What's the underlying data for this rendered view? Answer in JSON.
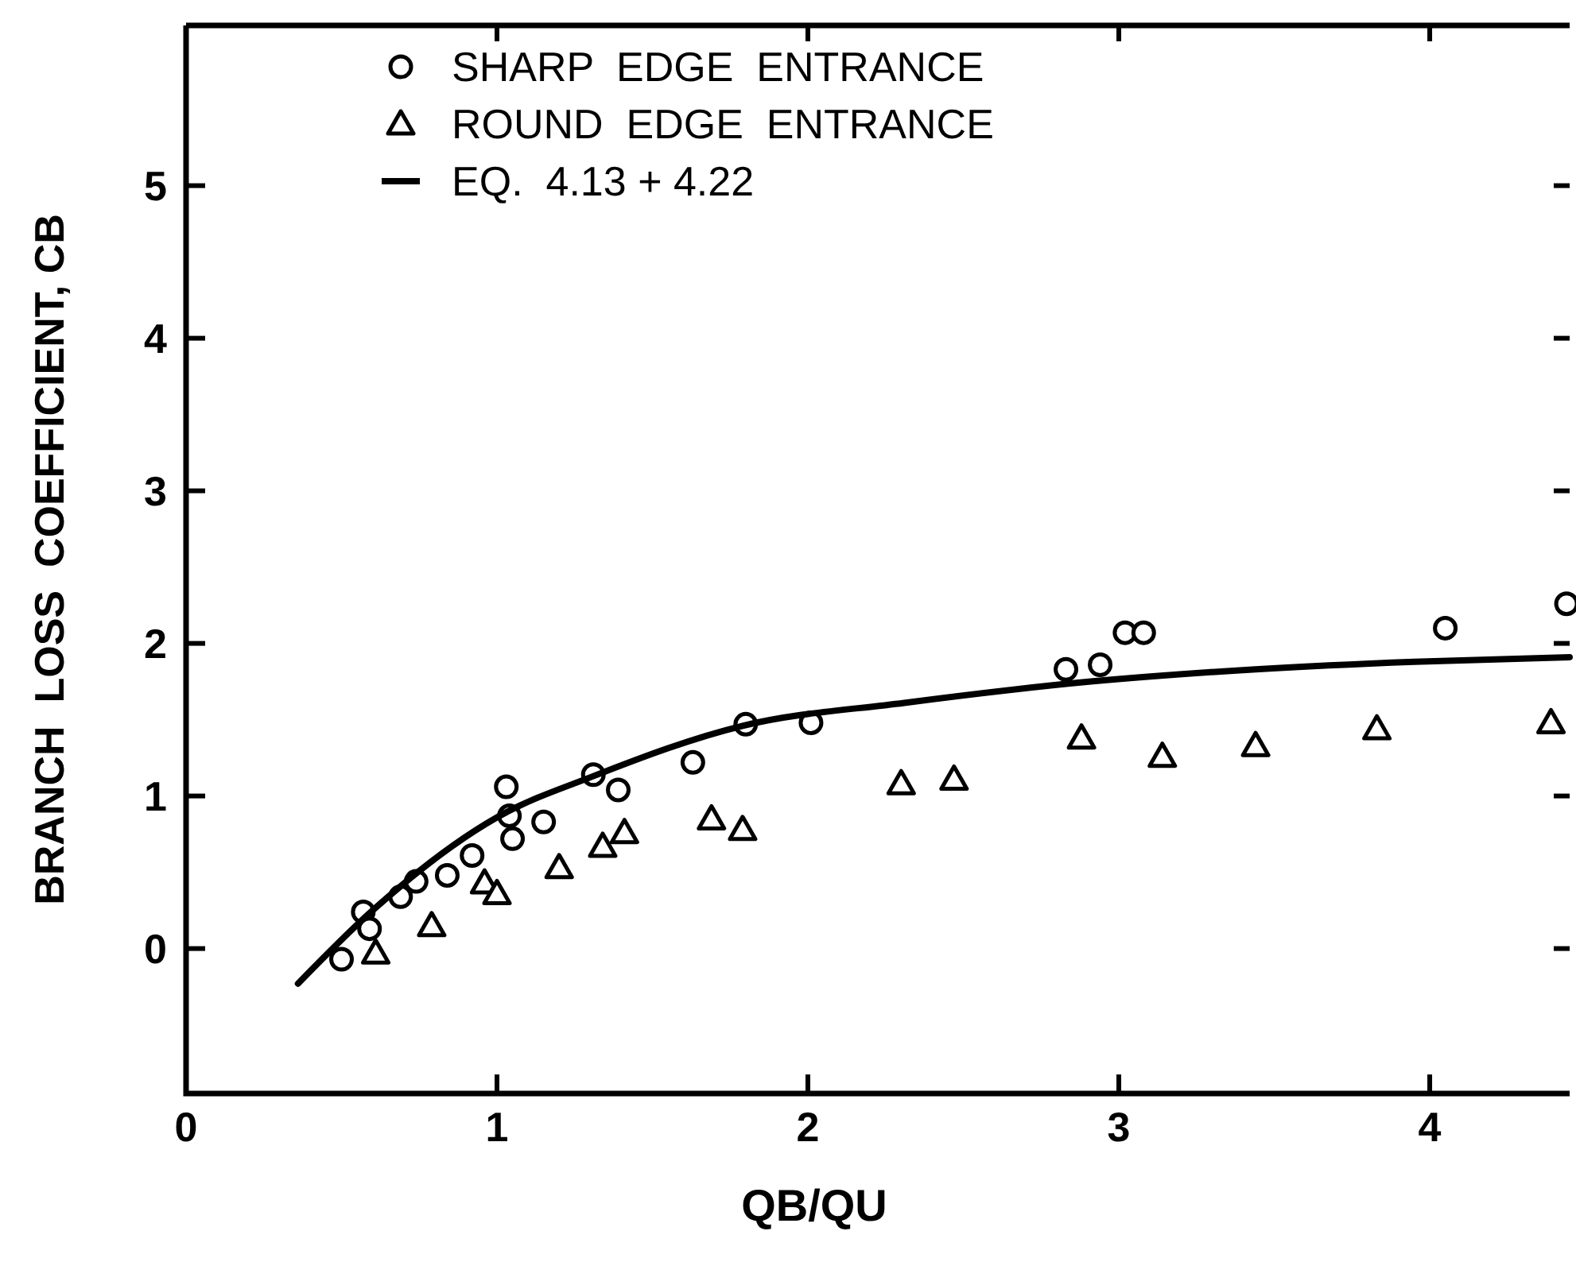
{
  "chart_data": {
    "type": "scatter",
    "xlabel": "QB/QU",
    "ylabel": "BRANCH  LOSS  COEFFICIENT, CB",
    "xlim": [
      0,
      4.45
    ],
    "ylim": [
      -0.95,
      6.05
    ],
    "xticks": [
      0,
      1,
      2,
      3,
      4
    ],
    "yticks": [
      0,
      1,
      2,
      3,
      4,
      5
    ],
    "grid": false,
    "legend": "top left",
    "series": [
      {
        "name": "SHARP  EDGE  ENTRANCE",
        "color": "#000000",
        "marker": "circle",
        "x": [
          0.5,
          0.57,
          0.59,
          0.69,
          0.74,
          0.84,
          0.92,
          1.03,
          1.04,
          1.05,
          1.15,
          1.31,
          1.39,
          1.63,
          1.8,
          2.01,
          2.83,
          2.94,
          3.02,
          3.08,
          4.05,
          4.44
        ],
        "values": [
          -0.07,
          0.24,
          0.13,
          0.34,
          0.44,
          0.48,
          0.61,
          1.06,
          0.87,
          0.72,
          0.83,
          1.14,
          1.04,
          1.22,
          1.47,
          1.48,
          1.83,
          1.86,
          2.07,
          2.07,
          2.1,
          2.26
        ]
      },
      {
        "name": "ROUND  EDGE  ENTRANCE",
        "color": "#000000",
        "marker": "triangle",
        "x": [
          0.61,
          0.79,
          0.96,
          1.0,
          1.2,
          1.34,
          1.41,
          1.69,
          1.79,
          2.3,
          2.47,
          2.88,
          3.14,
          3.44,
          3.83,
          4.39
        ],
        "values": [
          -0.03,
          0.15,
          0.43,
          0.36,
          0.53,
          0.67,
          0.76,
          0.85,
          0.78,
          1.08,
          1.11,
          1.38,
          1.26,
          1.33,
          1.44,
          1.48
        ]
      },
      {
        "name": "EQ.  4.13 + 4.22",
        "color": "#000000",
        "type": "line",
        "marker": "none",
        "line_style": "solid",
        "x": [
          0.36,
          0.6,
          1.0,
          1.31,
          1.79,
          2.31,
          2.91,
          3.44,
          3.95,
          4.45
        ],
        "values": [
          -0.23,
          0.25,
          0.86,
          1.13,
          1.46,
          1.61,
          1.75,
          1.83,
          1.88,
          1.91
        ]
      }
    ]
  }
}
